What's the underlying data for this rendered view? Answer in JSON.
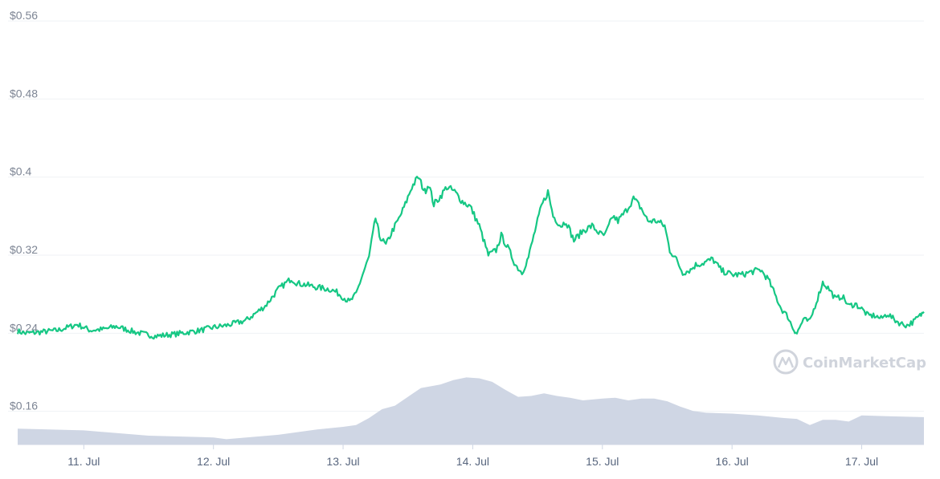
{
  "brand": {
    "watermark": "CoinMarketCap"
  },
  "colors": {
    "price_line": "#16c784",
    "volume_fill": "#cfd6e4",
    "grid": "#eff2f5"
  },
  "icons": {
    "watermark_logo": "coinmarketcap-logo-icon"
  },
  "chart_data": {
    "type": "line",
    "title": "",
    "xlabel": "",
    "ylabel": "",
    "y_ticks": [
      "$0.56",
      "$0.48",
      "$0.4",
      "$0.32",
      "$0.24",
      "$0.16"
    ],
    "y_tick_values": [
      0.56,
      0.48,
      0.4,
      0.32,
      0.24,
      0.16
    ],
    "x_ticks": [
      "11. Jul",
      "12. Jul",
      "13. Jul",
      "14. Jul",
      "15. Jul",
      "16. Jul",
      "17. Jul"
    ],
    "x_tick_values": [
      1,
      2,
      3,
      4,
      5,
      6,
      7
    ],
    "xlim": [
      0.49,
      7.48
    ],
    "ylim": [
      0.126,
      0.565
    ],
    "grid": true,
    "series": [
      {
        "values_x": [
          0.49,
          0.55,
          0.65,
          0.8,
          0.95,
          1.05,
          1.15,
          1.25,
          1.4,
          1.55,
          1.7,
          1.8,
          1.9,
          2.0,
          2.1,
          2.25,
          2.4,
          2.5,
          2.6,
          2.65,
          2.7,
          2.8,
          2.9,
          2.95,
          3.0,
          3.05,
          3.1,
          3.15,
          3.2,
          3.25,
          3.28,
          3.33,
          3.38,
          3.43,
          3.48,
          3.53,
          3.58,
          3.63,
          3.66,
          3.7,
          3.75,
          3.8,
          3.86,
          3.92,
          3.98,
          4.05,
          4.12,
          4.18,
          4.22,
          4.28,
          4.33,
          4.38,
          4.43,
          4.48,
          4.53,
          4.58,
          4.62,
          4.68,
          4.72,
          4.78,
          4.85,
          4.92,
          4.98,
          5.02,
          5.08,
          5.12,
          5.18,
          5.24,
          5.3,
          5.35,
          5.42,
          5.48,
          5.52,
          5.56,
          5.62,
          5.68,
          5.72,
          5.78,
          5.85,
          5.92,
          6.0,
          6.08,
          6.15,
          6.22,
          6.28,
          6.33,
          6.38,
          6.43,
          6.47,
          6.5,
          6.55,
          6.6,
          6.65,
          6.7,
          6.75,
          6.8,
          6.85,
          6.9,
          6.95,
          7.0,
          7.05,
          7.1,
          7.15,
          7.2,
          7.25,
          7.3,
          7.35,
          7.4,
          7.45,
          7.48
        ],
        "values_y": [
          0.242,
          0.24,
          0.241,
          0.243,
          0.249,
          0.243,
          0.244,
          0.247,
          0.241,
          0.237,
          0.239,
          0.241,
          0.243,
          0.246,
          0.248,
          0.253,
          0.268,
          0.285,
          0.296,
          0.291,
          0.29,
          0.287,
          0.285,
          0.282,
          0.277,
          0.272,
          0.28,
          0.3,
          0.318,
          0.358,
          0.34,
          0.33,
          0.345,
          0.357,
          0.372,
          0.39,
          0.4,
          0.385,
          0.393,
          0.372,
          0.38,
          0.39,
          0.385,
          0.375,
          0.37,
          0.35,
          0.32,
          0.325,
          0.34,
          0.325,
          0.31,
          0.302,
          0.318,
          0.345,
          0.37,
          0.385,
          0.36,
          0.35,
          0.355,
          0.335,
          0.345,
          0.35,
          0.342,
          0.34,
          0.36,
          0.355,
          0.365,
          0.378,
          0.368,
          0.355,
          0.355,
          0.35,
          0.325,
          0.318,
          0.302,
          0.305,
          0.31,
          0.312,
          0.316,
          0.304,
          0.3,
          0.3,
          0.303,
          0.305,
          0.295,
          0.28,
          0.265,
          0.257,
          0.245,
          0.24,
          0.254,
          0.252,
          0.272,
          0.292,
          0.285,
          0.275,
          0.278,
          0.268,
          0.27,
          0.265,
          0.258,
          0.258,
          0.255,
          0.26,
          0.254,
          0.25,
          0.248,
          0.252,
          0.258,
          0.262
        ]
      }
    ],
    "volume": {
      "x": [
        0.49,
        1.0,
        1.5,
        2.0,
        2.1,
        2.5,
        2.8,
        3.0,
        3.1,
        3.2,
        3.3,
        3.4,
        3.5,
        3.6,
        3.75,
        3.85,
        3.95,
        4.05,
        4.15,
        4.25,
        4.35,
        4.45,
        4.55,
        4.65,
        4.75,
        4.85,
        5.0,
        5.1,
        5.2,
        5.3,
        5.4,
        5.5,
        5.6,
        5.7,
        5.8,
        6.0,
        6.2,
        6.4,
        6.5,
        6.6,
        6.7,
        6.8,
        6.9,
        7.0,
        7.2,
        7.48
      ],
      "values": [
        18,
        16,
        10,
        8,
        6,
        11,
        17,
        20,
        22,
        30,
        40,
        44,
        54,
        64,
        68,
        73,
        76,
        75,
        71,
        62,
        54,
        55,
        58,
        55,
        53,
        50,
        52,
        53,
        50,
        52,
        52,
        49,
        43,
        38,
        36,
        35,
        33,
        30,
        29,
        22,
        28,
        28,
        26,
        33,
        32,
        31
      ]
    }
  }
}
